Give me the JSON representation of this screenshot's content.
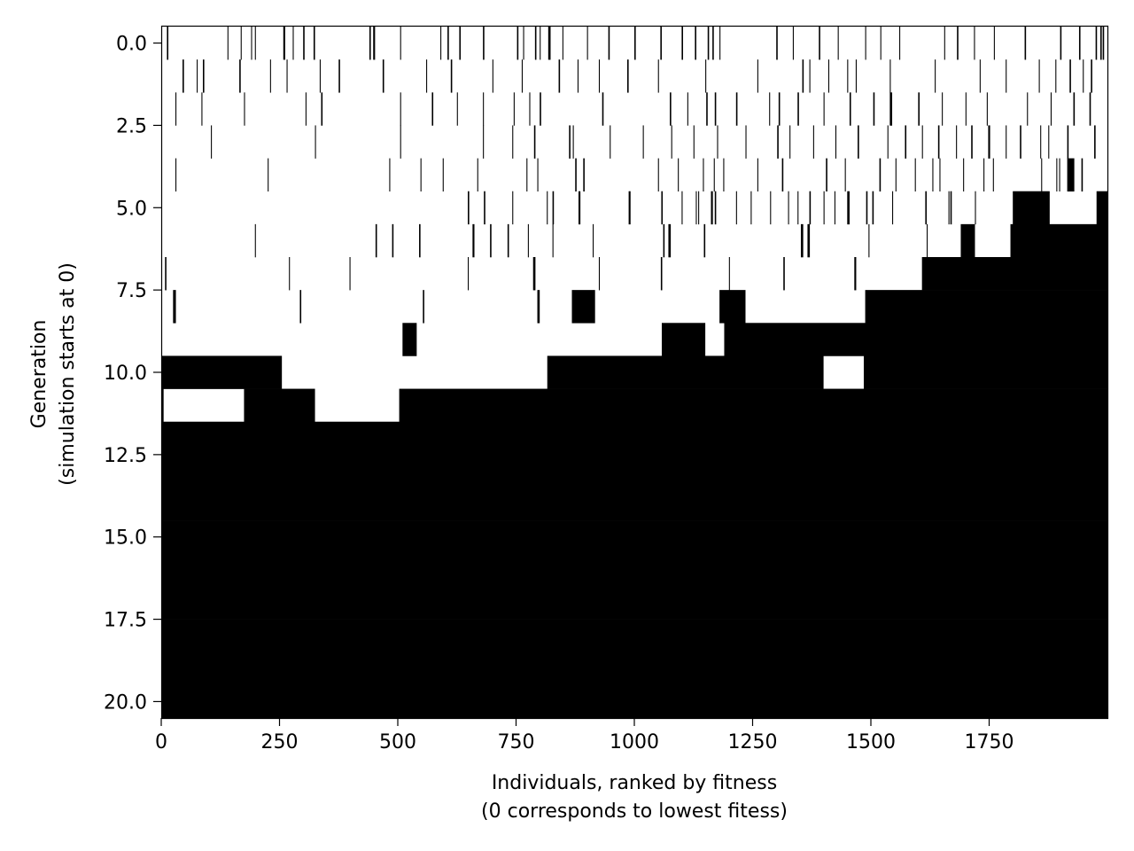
{
  "chart_data": {
    "type": "heatmap",
    "title": "",
    "xlabel_lines": [
      "Individuals, ranked by fitness",
      "(0 corresponds to lowest fitess)"
    ],
    "ylabel_lines": [
      "Generation",
      "(simulation starts at 0)"
    ],
    "xlim": [
      0,
      2000
    ],
    "ylim": [
      -0.5,
      20.5
    ],
    "y_inverted": true,
    "x_ticks": [
      0,
      250,
      500,
      750,
      1000,
      1250,
      1500,
      1750
    ],
    "x_tick_labels": [
      "0",
      "250",
      "500",
      "750",
      "1000",
      "1250",
      "1500",
      "1750"
    ],
    "y_ticks": [
      0,
      2.5,
      5,
      7.5,
      10,
      12.5,
      15,
      17.5,
      20
    ],
    "y_tick_labels": [
      "0.0",
      "2.5",
      "5.0",
      "7.5",
      "10.0",
      "12.5",
      "15.0",
      "17.5",
      "20.0"
    ],
    "colors": {
      "value_0": "#ffffff",
      "value_1": "#000000"
    },
    "generations": 21,
    "black_intervals_by_generation": [
      [
        [
          12,
          15
        ],
        [
          140,
          142
        ],
        [
          168,
          170
        ],
        [
          190,
          192
        ],
        [
          198,
          200
        ],
        [
          258,
          262
        ],
        [
          278,
          280
        ],
        [
          300,
          303
        ],
        [
          322,
          325
        ],
        [
          440,
          443
        ],
        [
          448,
          452
        ],
        [
          505,
          507
        ],
        [
          590,
          592
        ],
        [
          605,
          608
        ],
        [
          630,
          633
        ],
        [
          680,
          683
        ],
        [
          752,
          755
        ],
        [
          765,
          767
        ],
        [
          790,
          793
        ],
        [
          800,
          802
        ],
        [
          818,
          823
        ],
        [
          848,
          850
        ],
        [
          900,
          902
        ],
        [
          945,
          948
        ],
        [
          1000,
          1003
        ],
        [
          1055,
          1058
        ],
        [
          1100,
          1103
        ],
        [
          1128,
          1131
        ],
        [
          1155,
          1158
        ],
        [
          1165,
          1168
        ],
        [
          1180,
          1182
        ],
        [
          1300,
          1303
        ],
        [
          1335,
          1337
        ],
        [
          1390,
          1393
        ],
        [
          1430,
          1432
        ],
        [
          1488,
          1490
        ],
        [
          1520,
          1522
        ],
        [
          1560,
          1562
        ],
        [
          1655,
          1657
        ],
        [
          1682,
          1685
        ],
        [
          1718,
          1720
        ],
        [
          1760,
          1762
        ],
        [
          1825,
          1828
        ],
        [
          1900,
          1903
        ],
        [
          1940,
          1943
        ],
        [
          1975,
          1978
        ],
        [
          1985,
          1988
        ],
        [
          1990,
          1993
        ]
      ],
      [
        [
          45,
          48
        ],
        [
          75,
          77
        ],
        [
          88,
          91
        ],
        [
          165,
          168
        ],
        [
          230,
          232
        ],
        [
          265,
          267
        ],
        [
          335,
          337
        ],
        [
          375,
          378
        ],
        [
          468,
          471
        ],
        [
          560,
          562
        ],
        [
          612,
          615
        ],
        [
          700,
          702
        ],
        [
          762,
          764
        ],
        [
          840,
          843
        ],
        [
          880,
          882
        ],
        [
          925,
          927
        ],
        [
          985,
          988
        ],
        [
          1050,
          1052
        ],
        [
          1150,
          1152
        ],
        [
          1260,
          1262
        ],
        [
          1355,
          1358
        ],
        [
          1370,
          1372
        ],
        [
          1410,
          1412
        ],
        [
          1450,
          1452
        ],
        [
          1468,
          1470
        ],
        [
          1540,
          1542
        ],
        [
          1635,
          1637
        ],
        [
          1730,
          1732
        ],
        [
          1785,
          1787
        ],
        [
          1855,
          1857
        ],
        [
          1890,
          1892
        ],
        [
          1920,
          1923
        ],
        [
          1948,
          1950
        ],
        [
          1965,
          1968
        ]
      ],
      [
        [
          30,
          32
        ],
        [
          85,
          87
        ],
        [
          175,
          177
        ],
        [
          305,
          307
        ],
        [
          338,
          341
        ],
        [
          505,
          507
        ],
        [
          572,
          575
        ],
        [
          625,
          627
        ],
        [
          680,
          682
        ],
        [
          745,
          747
        ],
        [
          778,
          780
        ],
        [
          800,
          803
        ],
        [
          932,
          935
        ],
        [
          1075,
          1078
        ],
        [
          1112,
          1114
        ],
        [
          1152,
          1155
        ],
        [
          1170,
          1173
        ],
        [
          1215,
          1218
        ],
        [
          1285,
          1287
        ],
        [
          1305,
          1308
        ],
        [
          1345,
          1348
        ],
        [
          1400,
          1402
        ],
        [
          1455,
          1458
        ],
        [
          1505,
          1508
        ],
        [
          1540,
          1545
        ],
        [
          1600,
          1603
        ],
        [
          1650,
          1652
        ],
        [
          1700,
          1702
        ],
        [
          1745,
          1747
        ],
        [
          1830,
          1832
        ],
        [
          1880,
          1882
        ],
        [
          1928,
          1931
        ],
        [
          1962,
          1965
        ]
      ],
      [
        [
          105,
          107
        ],
        [
          325,
          327
        ],
        [
          505,
          507
        ],
        [
          680,
          682
        ],
        [
          742,
          744
        ],
        [
          788,
          791
        ],
        [
          862,
          865
        ],
        [
          870,
          872
        ],
        [
          948,
          950
        ],
        [
          1018,
          1020
        ],
        [
          1078,
          1080
        ],
        [
          1125,
          1127
        ],
        [
          1175,
          1177
        ],
        [
          1235,
          1237
        ],
        [
          1302,
          1305
        ],
        [
          1328,
          1330
        ],
        [
          1378,
          1380
        ],
        [
          1425,
          1427
        ],
        [
          1472,
          1475
        ],
        [
          1535,
          1537
        ],
        [
          1572,
          1575
        ],
        [
          1608,
          1610
        ],
        [
          1642,
          1645
        ],
        [
          1680,
          1682
        ],
        [
          1712,
          1715
        ],
        [
          1748,
          1752
        ],
        [
          1785,
          1787
        ],
        [
          1815,
          1818
        ],
        [
          1858,
          1860
        ],
        [
          1875,
          1877
        ],
        [
          1915,
          1918
        ],
        [
          1972,
          1975
        ]
      ],
      [
        [
          30,
          32
        ],
        [
          225,
          227
        ],
        [
          482,
          484
        ],
        [
          548,
          550
        ],
        [
          595,
          597
        ],
        [
          668,
          670
        ],
        [
          772,
          774
        ],
        [
          795,
          797
        ],
        [
          875,
          878
        ],
        [
          892,
          895
        ],
        [
          1050,
          1052
        ],
        [
          1092,
          1094
        ],
        [
          1145,
          1147
        ],
        [
          1168,
          1170
        ],
        [
          1188,
          1190
        ],
        [
          1260,
          1262
        ],
        [
          1312,
          1315
        ],
        [
          1405,
          1408
        ],
        [
          1445,
          1447
        ],
        [
          1518,
          1521
        ],
        [
          1552,
          1554
        ],
        [
          1593,
          1595
        ],
        [
          1630,
          1632
        ],
        [
          1645,
          1647
        ],
        [
          1695,
          1697
        ],
        [
          1738,
          1740
        ],
        [
          1758,
          1760
        ],
        [
          1860,
          1862
        ],
        [
          1892,
          1894
        ],
        [
          1898,
          1900
        ],
        [
          1915,
          1930
        ],
        [
          1945,
          1948
        ]
      ],
      [
        [
          648,
          651
        ],
        [
          682,
          685
        ],
        [
          742,
          744
        ],
        [
          815,
          817
        ],
        [
          827,
          830
        ],
        [
          882,
          886
        ],
        [
          988,
          992
        ],
        [
          1057,
          1060
        ],
        [
          1100,
          1102
        ],
        [
          1130,
          1132
        ],
        [
          1135,
          1137
        ],
        [
          1162,
          1166
        ],
        [
          1170,
          1173
        ],
        [
          1215,
          1217
        ],
        [
          1246,
          1248
        ],
        [
          1287,
          1289
        ],
        [
          1325,
          1327
        ],
        [
          1345,
          1347
        ],
        [
          1370,
          1373
        ],
        [
          1400,
          1402
        ],
        [
          1423,
          1425
        ],
        [
          1450,
          1455
        ],
        [
          1490,
          1493
        ],
        [
          1503,
          1506
        ],
        [
          1545,
          1547
        ],
        [
          1615,
          1618
        ],
        [
          1664,
          1666
        ],
        [
          1668,
          1671
        ],
        [
          1720,
          1722
        ],
        [
          1800,
          1878
        ],
        [
          1977,
          2000
        ]
      ],
      [
        [
          198,
          200
        ],
        [
          453,
          456
        ],
        [
          488,
          491
        ],
        [
          545,
          548
        ],
        [
          658,
          662
        ],
        [
          695,
          698
        ],
        [
          732,
          735
        ],
        [
          775,
          777
        ],
        [
          827,
          829
        ],
        [
          912,
          914
        ],
        [
          1061,
          1064
        ],
        [
          1072,
          1077
        ],
        [
          1147,
          1150
        ],
        [
          1352,
          1357
        ],
        [
          1366,
          1371
        ],
        [
          1495,
          1497
        ],
        [
          1618,
          1620
        ],
        [
          1690,
          1720
        ],
        [
          1795,
          2000
        ]
      ],
      [
        [
          8,
          11
        ],
        [
          270,
          272
        ],
        [
          398,
          400
        ],
        [
          648,
          650
        ],
        [
          786,
          791
        ],
        [
          925,
          927
        ],
        [
          1056,
          1059
        ],
        [
          1200,
          1202
        ],
        [
          1315,
          1318
        ],
        [
          1465,
          1469
        ],
        [
          1608,
          2000
        ]
      ],
      [
        [
          25,
          31
        ],
        [
          293,
          296
        ],
        [
          553,
          556
        ],
        [
          795,
          800
        ],
        [
          868,
          917
        ],
        [
          1180,
          1235
        ],
        [
          1488,
          2000
        ]
      ],
      [
        [
          510,
          540
        ],
        [
          1058,
          1150
        ],
        [
          1190,
          2000
        ]
      ],
      [
        [
          0,
          255
        ],
        [
          816,
          1400
        ],
        [
          1485,
          2000
        ]
      ],
      [
        [
          0,
          5
        ],
        [
          175,
          325
        ],
        [
          503,
          2000
        ]
      ],
      [
        [
          0,
          2000
        ]
      ],
      [
        [
          0,
          2000
        ]
      ],
      [
        [
          0,
          2000
        ]
      ],
      [
        [
          0,
          2000
        ]
      ],
      [
        [
          0,
          2000
        ]
      ],
      [
        [
          0,
          2000
        ]
      ],
      [
        [
          0,
          2000
        ]
      ],
      [
        [
          0,
          2000
        ]
      ],
      [
        [
          0,
          2000
        ]
      ]
    ]
  }
}
